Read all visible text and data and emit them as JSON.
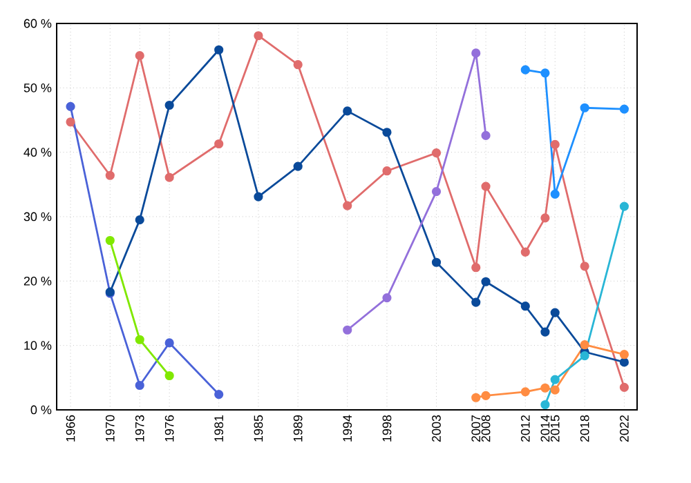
{
  "chart_data": {
    "type": "line",
    "marker": "circle",
    "grid": true,
    "xlim": [
      1964.6,
      2023.3
    ],
    "ylim": [
      0,
      60
    ],
    "xticks": [
      1966,
      1970,
      1973,
      1976,
      1981,
      1985,
      1989,
      1994,
      1998,
      2003,
      2007,
      2008,
      2012,
      2014,
      2015,
      2018,
      2022
    ],
    "yticks": [
      {
        "value": 0,
        "label": "0 %"
      },
      {
        "value": 10,
        "label": "10 %"
      },
      {
        "value": 20,
        "label": "20 %"
      },
      {
        "value": 30,
        "label": "30 %"
      },
      {
        "value": 40,
        "label": "40 %"
      },
      {
        "value": 50,
        "label": "50 %"
      },
      {
        "value": 60,
        "label": "60 %"
      }
    ],
    "series": [
      {
        "color": "#e06c6c",
        "x": [
          1966,
          1970,
          1973,
          1976,
          1981,
          1985,
          1989,
          1994,
          1998,
          2003,
          2007,
          2008,
          2012,
          2014,
          2015,
          2018,
          2022
        ],
        "values": [
          44.7,
          36.4,
          55.0,
          36.1,
          41.3,
          58.1,
          53.6,
          31.7,
          37.1,
          39.9,
          22.1,
          34.7,
          24.5,
          29.8,
          41.2,
          22.3,
          3.5
        ]
      },
      {
        "color": "#4a62d8",
        "x": [
          1966,
          1970,
          1973,
          1976,
          1981
        ],
        "values": [
          47.1,
          18.1,
          3.8,
          10.4,
          2.4
        ]
      },
      {
        "color": "#0a4a9a",
        "x": [
          1970,
          1973,
          1976,
          1981,
          1985,
          1989,
          1994,
          1998,
          2003,
          2007,
          2008,
          2012,
          2014,
          2015,
          2018,
          2022
        ],
        "values": [
          18.3,
          29.5,
          47.3,
          55.9,
          33.1,
          37.8,
          46.4,
          43.1,
          22.9,
          16.7,
          19.9,
          16.1,
          12.1,
          15.1,
          9.0,
          7.4
        ]
      },
      {
        "color": "#80e800",
        "x": [
          1970,
          1973,
          1976
        ],
        "values": [
          26.3,
          10.9,
          5.3
        ]
      },
      {
        "color": "#9370db",
        "x": [
          1994,
          1998,
          2003,
          2007,
          2008
        ],
        "values": [
          12.4,
          17.4,
          33.9,
          55.4,
          42.6
        ]
      },
      {
        "color": "#ff8c42",
        "x": [
          2007,
          2008,
          2012,
          2014,
          2015,
          2018,
          2022
        ],
        "values": [
          1.9,
          2.2,
          2.8,
          3.4,
          3.1,
          10.1,
          8.6
        ]
      },
      {
        "color": "#1e90ff",
        "x": [
          2012,
          2014,
          2015,
          2018,
          2022
        ],
        "values": [
          52.8,
          52.3,
          33.5,
          46.9,
          46.7
        ]
      },
      {
        "color": "#29b6d6",
        "x": [
          2014,
          2015,
          2018,
          2022
        ],
        "values": [
          0.8,
          4.7,
          8.4,
          31.6
        ]
      }
    ]
  }
}
